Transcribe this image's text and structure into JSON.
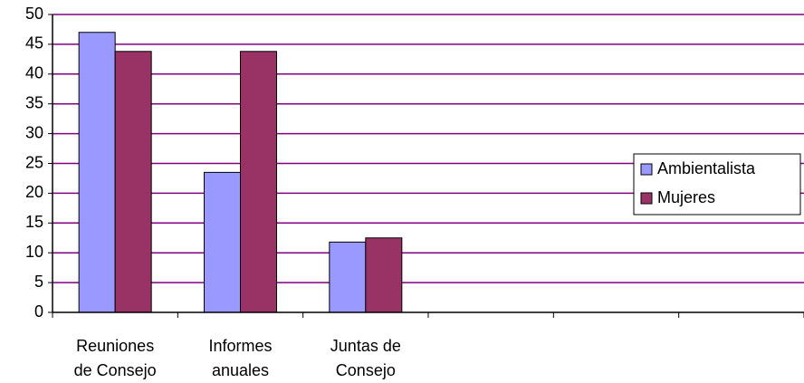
{
  "chart_data": {
    "type": "bar",
    "categories": [
      "Reuniones\nde Consejo",
      "Informes\nanuales",
      "Juntas de\nConsejo",
      null,
      null,
      null
    ],
    "series": [
      {
        "name": "Ambientalista",
        "color": "#9999ff",
        "values": [
          47,
          23.5,
          11.8,
          null,
          null,
          null
        ]
      },
      {
        "name": "Mujeres",
        "color": "#993366",
        "values": [
          43.8,
          43.8,
          12.5,
          null,
          null,
          null
        ]
      }
    ],
    "ylim": [
      0,
      50
    ],
    "yticks": [
      0,
      5,
      10,
      15,
      20,
      25,
      30,
      35,
      40,
      45,
      50
    ],
    "grid": true,
    "grid_color": "#800080",
    "legend": "right"
  }
}
